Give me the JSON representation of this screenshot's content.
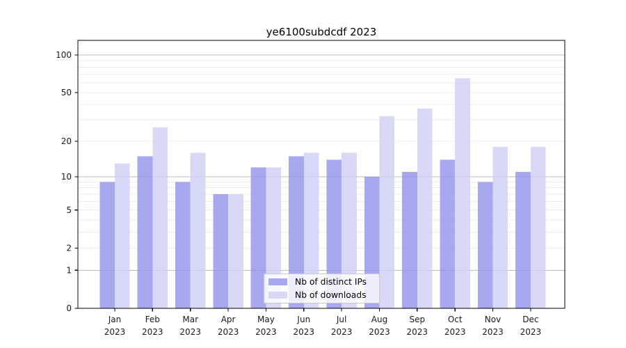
{
  "figure": {
    "title": "ye6100subdcdf 2023"
  },
  "chart_data": {
    "type": "bar",
    "title": "ye6100subdcdf 2023",
    "categories": [
      "Jan",
      "Feb",
      "Mar",
      "Apr",
      "May",
      "Jun",
      "Jul",
      "Aug",
      "Sep",
      "Oct",
      "Nov",
      "Dec"
    ],
    "year_label": "2023",
    "series": [
      {
        "name": "Nb of distinct IPs",
        "values": [
          9,
          15,
          9,
          7,
          12,
          15,
          14,
          10,
          11,
          14,
          9,
          11
        ],
        "color": "#a8a8f0",
        "fill_base": "#9292ec"
      },
      {
        "name": "Nb of downloads",
        "values": [
          13,
          26,
          16,
          7,
          12,
          16,
          16,
          32,
          37,
          65,
          18,
          18
        ],
        "color": "#d8d8f7",
        "fill_base": "#cecef5"
      }
    ],
    "fill_opacity": 0.8,
    "xlabel": "",
    "ylabel": "",
    "y_scale": "log1p",
    "y_ticks": [
      0,
      1,
      2,
      5,
      10,
      20,
      50,
      100
    ],
    "ylim": [
      0,
      131
    ],
    "grid": true,
    "legend_position": "lower center",
    "colors": {
      "grid_major": "#bdbdbd",
      "grid_minor": "#ececec",
      "axis": "#000000",
      "tick_label": "#1a1a1a",
      "background": "#ffffff"
    }
  }
}
